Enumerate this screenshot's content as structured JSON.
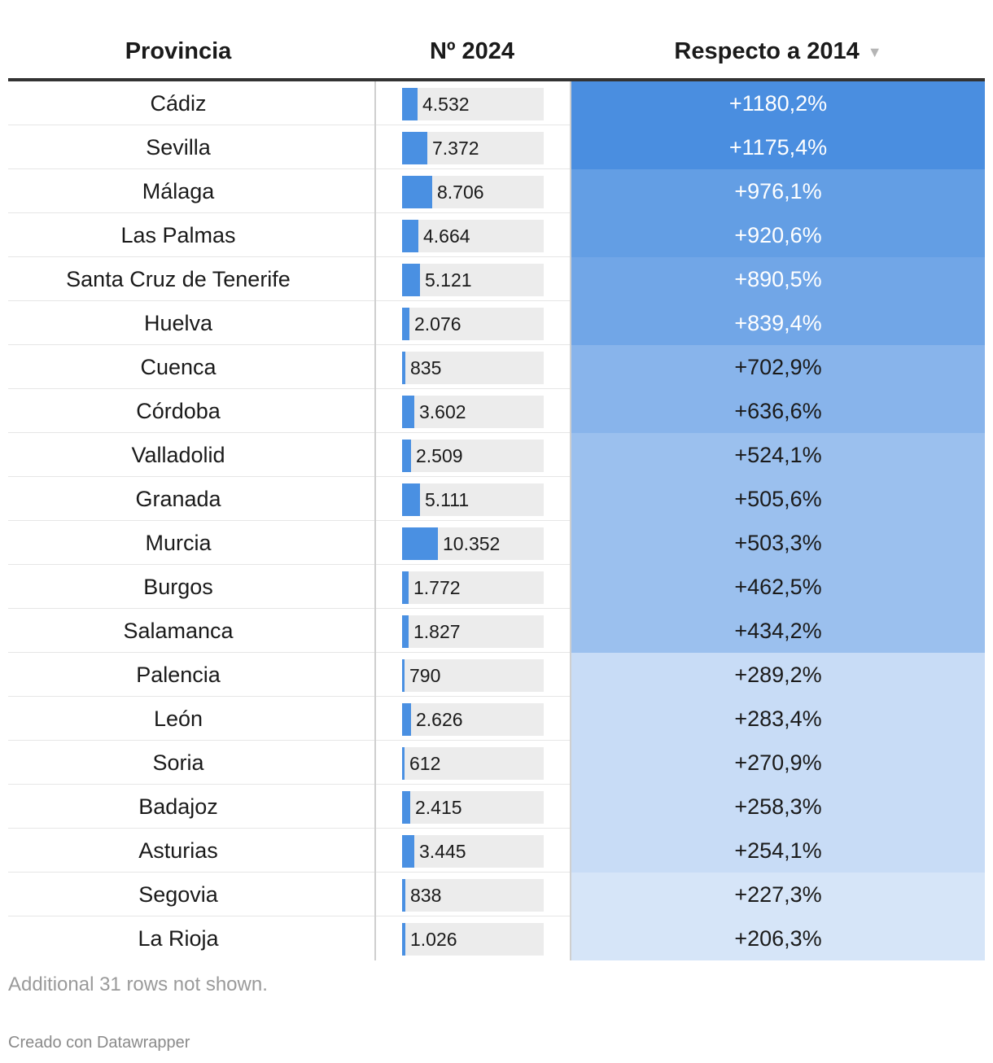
{
  "header": {
    "provincia": "Provincia",
    "numero": "Nº 2024",
    "respecto": "Respecto a 2014",
    "sort_icon": "▼"
  },
  "colors": {
    "bar": "#4a90e2",
    "bar_bg": "#ececec",
    "heat_low": "#d6e5f8",
    "heat_high": "#4a8ee0"
  },
  "chart_data": {
    "type": "table",
    "columns": [
      "Provincia",
      "Nº 2024",
      "Respecto a 2014"
    ],
    "bar_max": 10352,
    "rows": [
      {
        "provincia": "Cádiz",
        "numero": 4532,
        "numero_label": "4.532",
        "respecto": 1180.2,
        "respecto_label": "+1180,2%"
      },
      {
        "provincia": "Sevilla",
        "numero": 7372,
        "numero_label": "7.372",
        "respecto": 1175.4,
        "respecto_label": "+1175,4%"
      },
      {
        "provincia": "Málaga",
        "numero": 8706,
        "numero_label": "8.706",
        "respecto": 976.1,
        "respecto_label": "+976,1%"
      },
      {
        "provincia": "Las Palmas",
        "numero": 4664,
        "numero_label": "4.664",
        "respecto": 920.6,
        "respecto_label": "+920,6%"
      },
      {
        "provincia": "Santa Cruz de Tenerife",
        "numero": 5121,
        "numero_label": "5.121",
        "respecto": 890.5,
        "respecto_label": "+890,5%"
      },
      {
        "provincia": "Huelva",
        "numero": 2076,
        "numero_label": "2.076",
        "respecto": 839.4,
        "respecto_label": "+839,4%"
      },
      {
        "provincia": "Cuenca",
        "numero": 835,
        "numero_label": "835",
        "respecto": 702.9,
        "respecto_label": "+702,9%"
      },
      {
        "provincia": "Córdoba",
        "numero": 3602,
        "numero_label": "3.602",
        "respecto": 636.6,
        "respecto_label": "+636,6%"
      },
      {
        "provincia": "Valladolid",
        "numero": 2509,
        "numero_label": "2.509",
        "respecto": 524.1,
        "respecto_label": "+524,1%"
      },
      {
        "provincia": "Granada",
        "numero": 5111,
        "numero_label": "5.111",
        "respecto": 505.6,
        "respecto_label": "+505,6%"
      },
      {
        "provincia": "Murcia",
        "numero": 10352,
        "numero_label": "10.352",
        "respecto": 503.3,
        "respecto_label": "+503,3%"
      },
      {
        "provincia": "Burgos",
        "numero": 1772,
        "numero_label": "1.772",
        "respecto": 462.5,
        "respecto_label": "+462,5%"
      },
      {
        "provincia": "Salamanca",
        "numero": 1827,
        "numero_label": "1.827",
        "respecto": 434.2,
        "respecto_label": "+434,2%"
      },
      {
        "provincia": "Palencia",
        "numero": 790,
        "numero_label": "790",
        "respecto": 289.2,
        "respecto_label": "+289,2%"
      },
      {
        "provincia": "León",
        "numero": 2626,
        "numero_label": "2.626",
        "respecto": 283.4,
        "respecto_label": "+283,4%"
      },
      {
        "provincia": "Soria",
        "numero": 612,
        "numero_label": "612",
        "respecto": 270.9,
        "respecto_label": "+270,9%"
      },
      {
        "provincia": "Badajoz",
        "numero": 2415,
        "numero_label": "2.415",
        "respecto": 258.3,
        "respecto_label": "+258,3%"
      },
      {
        "provincia": "Asturias",
        "numero": 3445,
        "numero_label": "3.445",
        "respecto": 254.1,
        "respecto_label": "+254,1%"
      },
      {
        "provincia": "Segovia",
        "numero": 838,
        "numero_label": "838",
        "respecto": 227.3,
        "respecto_label": "+227,3%"
      },
      {
        "provincia": "La Rioja",
        "numero": 1026,
        "numero_label": "1.026",
        "respecto": 206.3,
        "respecto_label": "+206,3%"
      }
    ]
  },
  "footer": {
    "note": "Additional 31 rows not shown.",
    "credit": "Creado con Datawrapper"
  }
}
